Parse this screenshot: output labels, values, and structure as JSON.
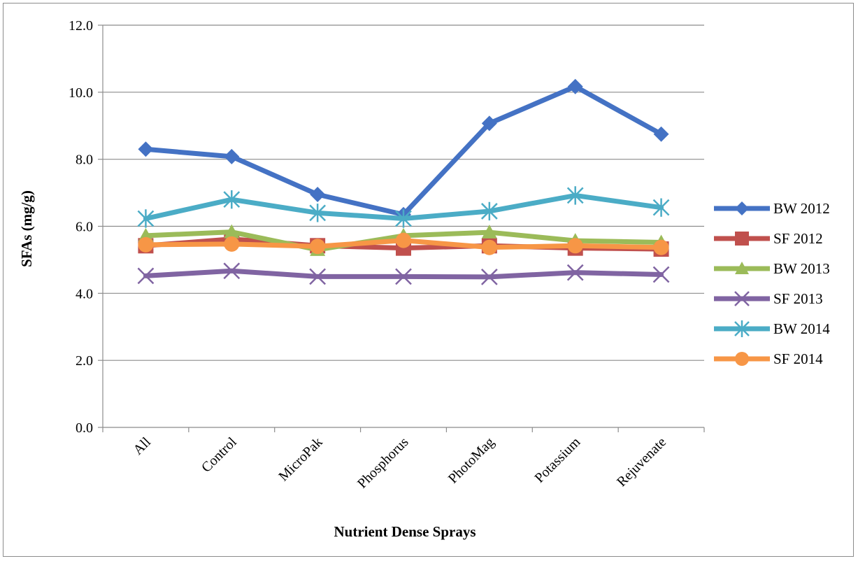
{
  "chart_data": {
    "type": "line",
    "title": "",
    "xlabel": "Nutrient Dense Sprays",
    "ylabel": "SFAs (mg/g)",
    "categories": [
      "All",
      "Control",
      "MicroPak",
      "Phosphorus",
      "PhotoMag",
      "Potassium",
      "Rejuvenate"
    ],
    "ylim": [
      0,
      12
    ],
    "yticks": [
      "0.0",
      "2.0",
      "4.0",
      "6.0",
      "8.0",
      "10.0",
      "12.0"
    ],
    "grid": true,
    "legend_position": "right",
    "series": [
      {
        "name": "BW 2012",
        "color": "#4472C4",
        "marker": "diamond",
        "values": [
          8.3,
          8.08,
          6.95,
          6.35,
          9.07,
          10.17,
          8.75
        ]
      },
      {
        "name": "SF 2012",
        "color": "#C0504D",
        "marker": "square",
        "values": [
          5.42,
          5.62,
          5.42,
          5.35,
          5.42,
          5.35,
          5.32
        ]
      },
      {
        "name": "BW 2013",
        "color": "#9BBB59",
        "marker": "triangle",
        "values": [
          5.72,
          5.83,
          5.3,
          5.72,
          5.82,
          5.57,
          5.52
        ]
      },
      {
        "name": "SF 2013",
        "color": "#8064A2",
        "marker": "x",
        "values": [
          4.52,
          4.67,
          4.5,
          4.5,
          4.49,
          4.62,
          4.56
        ]
      },
      {
        "name": "BW 2014",
        "color": "#4BACC6",
        "marker": "star",
        "values": [
          6.23,
          6.8,
          6.4,
          6.23,
          6.45,
          6.92,
          6.56
        ]
      },
      {
        "name": "SF 2014",
        "color": "#F79646",
        "marker": "circle",
        "values": [
          5.45,
          5.47,
          5.4,
          5.58,
          5.37,
          5.42,
          5.37
        ]
      }
    ]
  }
}
